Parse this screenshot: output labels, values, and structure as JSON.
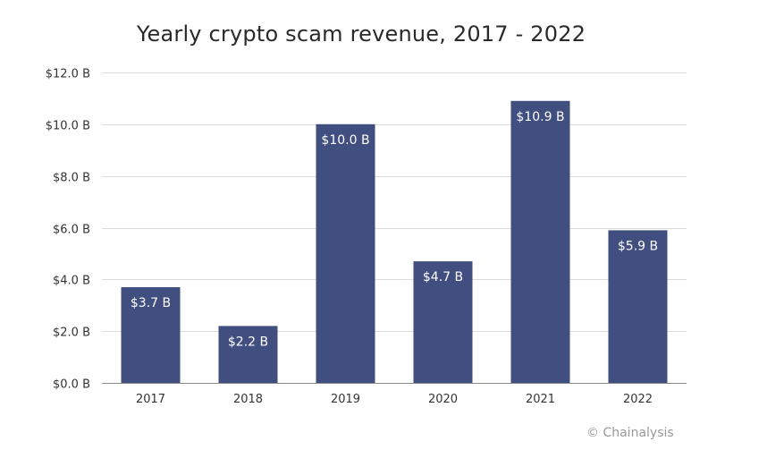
{
  "chart_data": {
    "type": "bar",
    "title": "Yearly crypto scam revenue, 2017 - 2022",
    "categories": [
      "2017",
      "2018",
      "2019",
      "2020",
      "2021",
      "2022"
    ],
    "values": [
      3.7,
      2.2,
      10.0,
      4.7,
      10.9,
      5.9
    ],
    "data_labels": [
      "$3.7 B",
      "$2.2 B",
      "$10.0 B",
      "$4.7 B",
      "$10.9 B",
      "$5.9 B"
    ],
    "ylim": [
      0,
      12
    ],
    "yticks": [
      0,
      2,
      4,
      6,
      8,
      10,
      12
    ],
    "ytick_labels": [
      "$0.0 B",
      "$2.0 B",
      "$4.0 B",
      "$6.0 B",
      "$8.0 B",
      "$10.0 B",
      "$12.0 B"
    ],
    "xlabel": "",
    "ylabel": "",
    "grid": true,
    "legend": "none",
    "bar_color": "#414e80",
    "grid_color": "#dcdcdc"
  },
  "credit": "© Chainalysis"
}
